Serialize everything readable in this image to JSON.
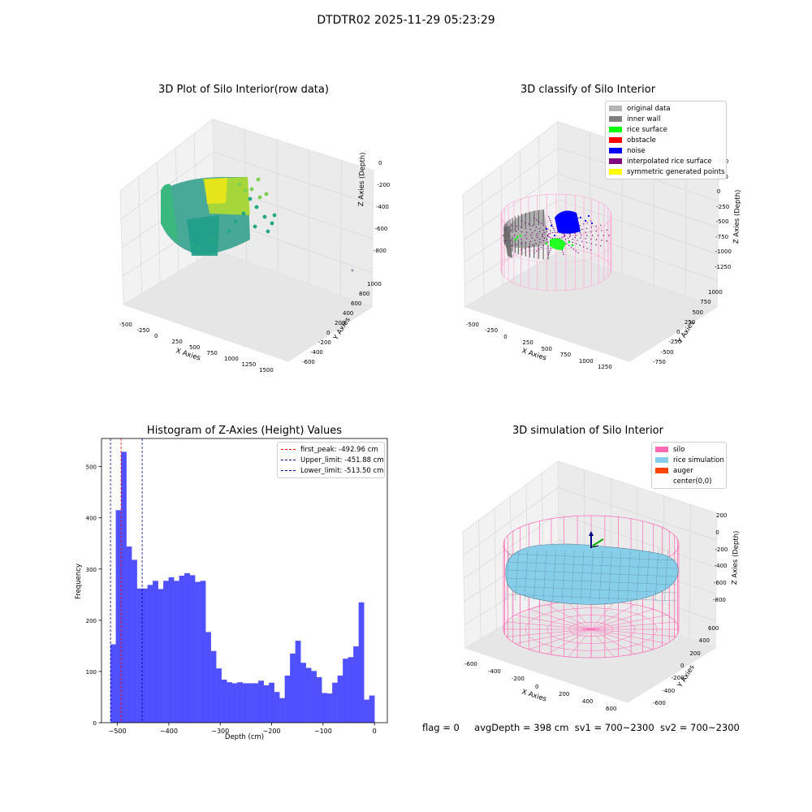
{
  "figure": {
    "suptitle": "DTDTR02 2025-11-29 05:23:29",
    "footer": {
      "flag": "flag = 0",
      "avg_depth": "avgDepth = 398 cm",
      "sv1": "sv1 = 700~2300",
      "sv2": "sv2 = 700~2300"
    }
  },
  "panels": {
    "raw": {
      "title": "3D Plot of Silo Interior(row data)",
      "xlabel": "X Axies",
      "ylabel": "Y Axies",
      "zlabel": "Z Axies (Depth)",
      "xticks": [
        "-500",
        "-250",
        "0",
        "250",
        "500",
        "750",
        "1000",
        "1250",
        "1500"
      ],
      "yticks": [
        "-600",
        "-400",
        "-200",
        "0",
        "200",
        "400",
        "600",
        "800",
        "1000"
      ],
      "zticks": [
        "0",
        "-200",
        "-400",
        "-600",
        "-800"
      ]
    },
    "classify": {
      "title": "3D classify of Silo Interior",
      "xlabel": "X Axies",
      "ylabel": "Y Axies",
      "zlabel": "Z Axies (Depth)",
      "xticks": [
        "-500",
        "-250",
        "0",
        "250",
        "500",
        "750",
        "1000",
        "1250"
      ],
      "yticks": [
        "-750",
        "-500",
        "-250",
        "0",
        "250",
        "500",
        "750",
        "1000"
      ],
      "zticks": [
        "500",
        "250",
        "0",
        "-250",
        "-500",
        "-750",
        "-1000",
        "-1250"
      ],
      "legend": [
        {
          "label": "original data",
          "color": "#b4b4b4"
        },
        {
          "label": "inner wall",
          "color": "#808080"
        },
        {
          "label": "rice surface",
          "color": "#00ff00"
        },
        {
          "label": "obstacle",
          "color": "#ff0000"
        },
        {
          "label": "noise",
          "color": "#0000ff"
        },
        {
          "label": "interpolated rice surface",
          "color": "#800080"
        },
        {
          "label": "symmetric generated points",
          "color": "#ffff00"
        }
      ]
    },
    "simulation": {
      "title": "3D simulation of Silo Interior",
      "xlabel": "X Axies",
      "ylabel": "Y Axies",
      "zlabel": "Z Axies (Depth)",
      "xticks": [
        "-600",
        "-400",
        "-200",
        "0",
        "200",
        "400",
        "600"
      ],
      "yticks": [
        "-600",
        "-400",
        "-200",
        "0",
        "200",
        "400",
        "600"
      ],
      "zticks": [
        "200",
        "0",
        "-200",
        "-400",
        "-600",
        "-800"
      ],
      "legend": [
        {
          "label": "silo",
          "color": "#ff69b4"
        },
        {
          "label": "rice simulation",
          "color": "#87ceeb"
        },
        {
          "label": "auger",
          "color": "#ff4500"
        },
        {
          "label": "center(0,0)",
          "color": ""
        }
      ]
    }
  },
  "chart_data": {
    "type": "bar",
    "title": "Histogram of Z-Axies (Height) Values",
    "xlabel": "Depth (cm)",
    "ylabel": "Frequency",
    "xlim": [
      -531,
      25
    ],
    "ylim": [
      0,
      555
    ],
    "xticks": [
      -500,
      -400,
      -300,
      -200,
      -100,
      0
    ],
    "yticks": [
      0,
      100,
      200,
      300,
      400,
      500
    ],
    "bin_start": -513.5,
    "bin_width": 10.27,
    "bar_color": "#5050ff",
    "values": [
      153,
      415,
      529,
      344,
      318,
      262,
      262,
      269,
      277,
      261,
      277,
      284,
      277,
      287,
      292,
      288,
      275,
      277,
      177,
      140,
      106,
      84,
      79,
      77,
      79,
      77,
      77,
      77,
      82,
      73,
      78,
      60,
      48,
      92,
      135,
      160,
      117,
      107,
      101,
      89,
      58,
      57,
      78,
      92,
      125,
      128,
      149,
      235,
      45,
      53
    ],
    "vlines": [
      {
        "label": "first_peak: -492.96 cm",
        "x": -492.96,
        "color": "#ff0000"
      },
      {
        "label": "Upper_limit: -451.88 cm",
        "x": -451.88,
        "color": "#00008b"
      },
      {
        "label": "Lower_limit: -513.50 cm",
        "x": -513.5,
        "color": "#00008b"
      }
    ]
  }
}
